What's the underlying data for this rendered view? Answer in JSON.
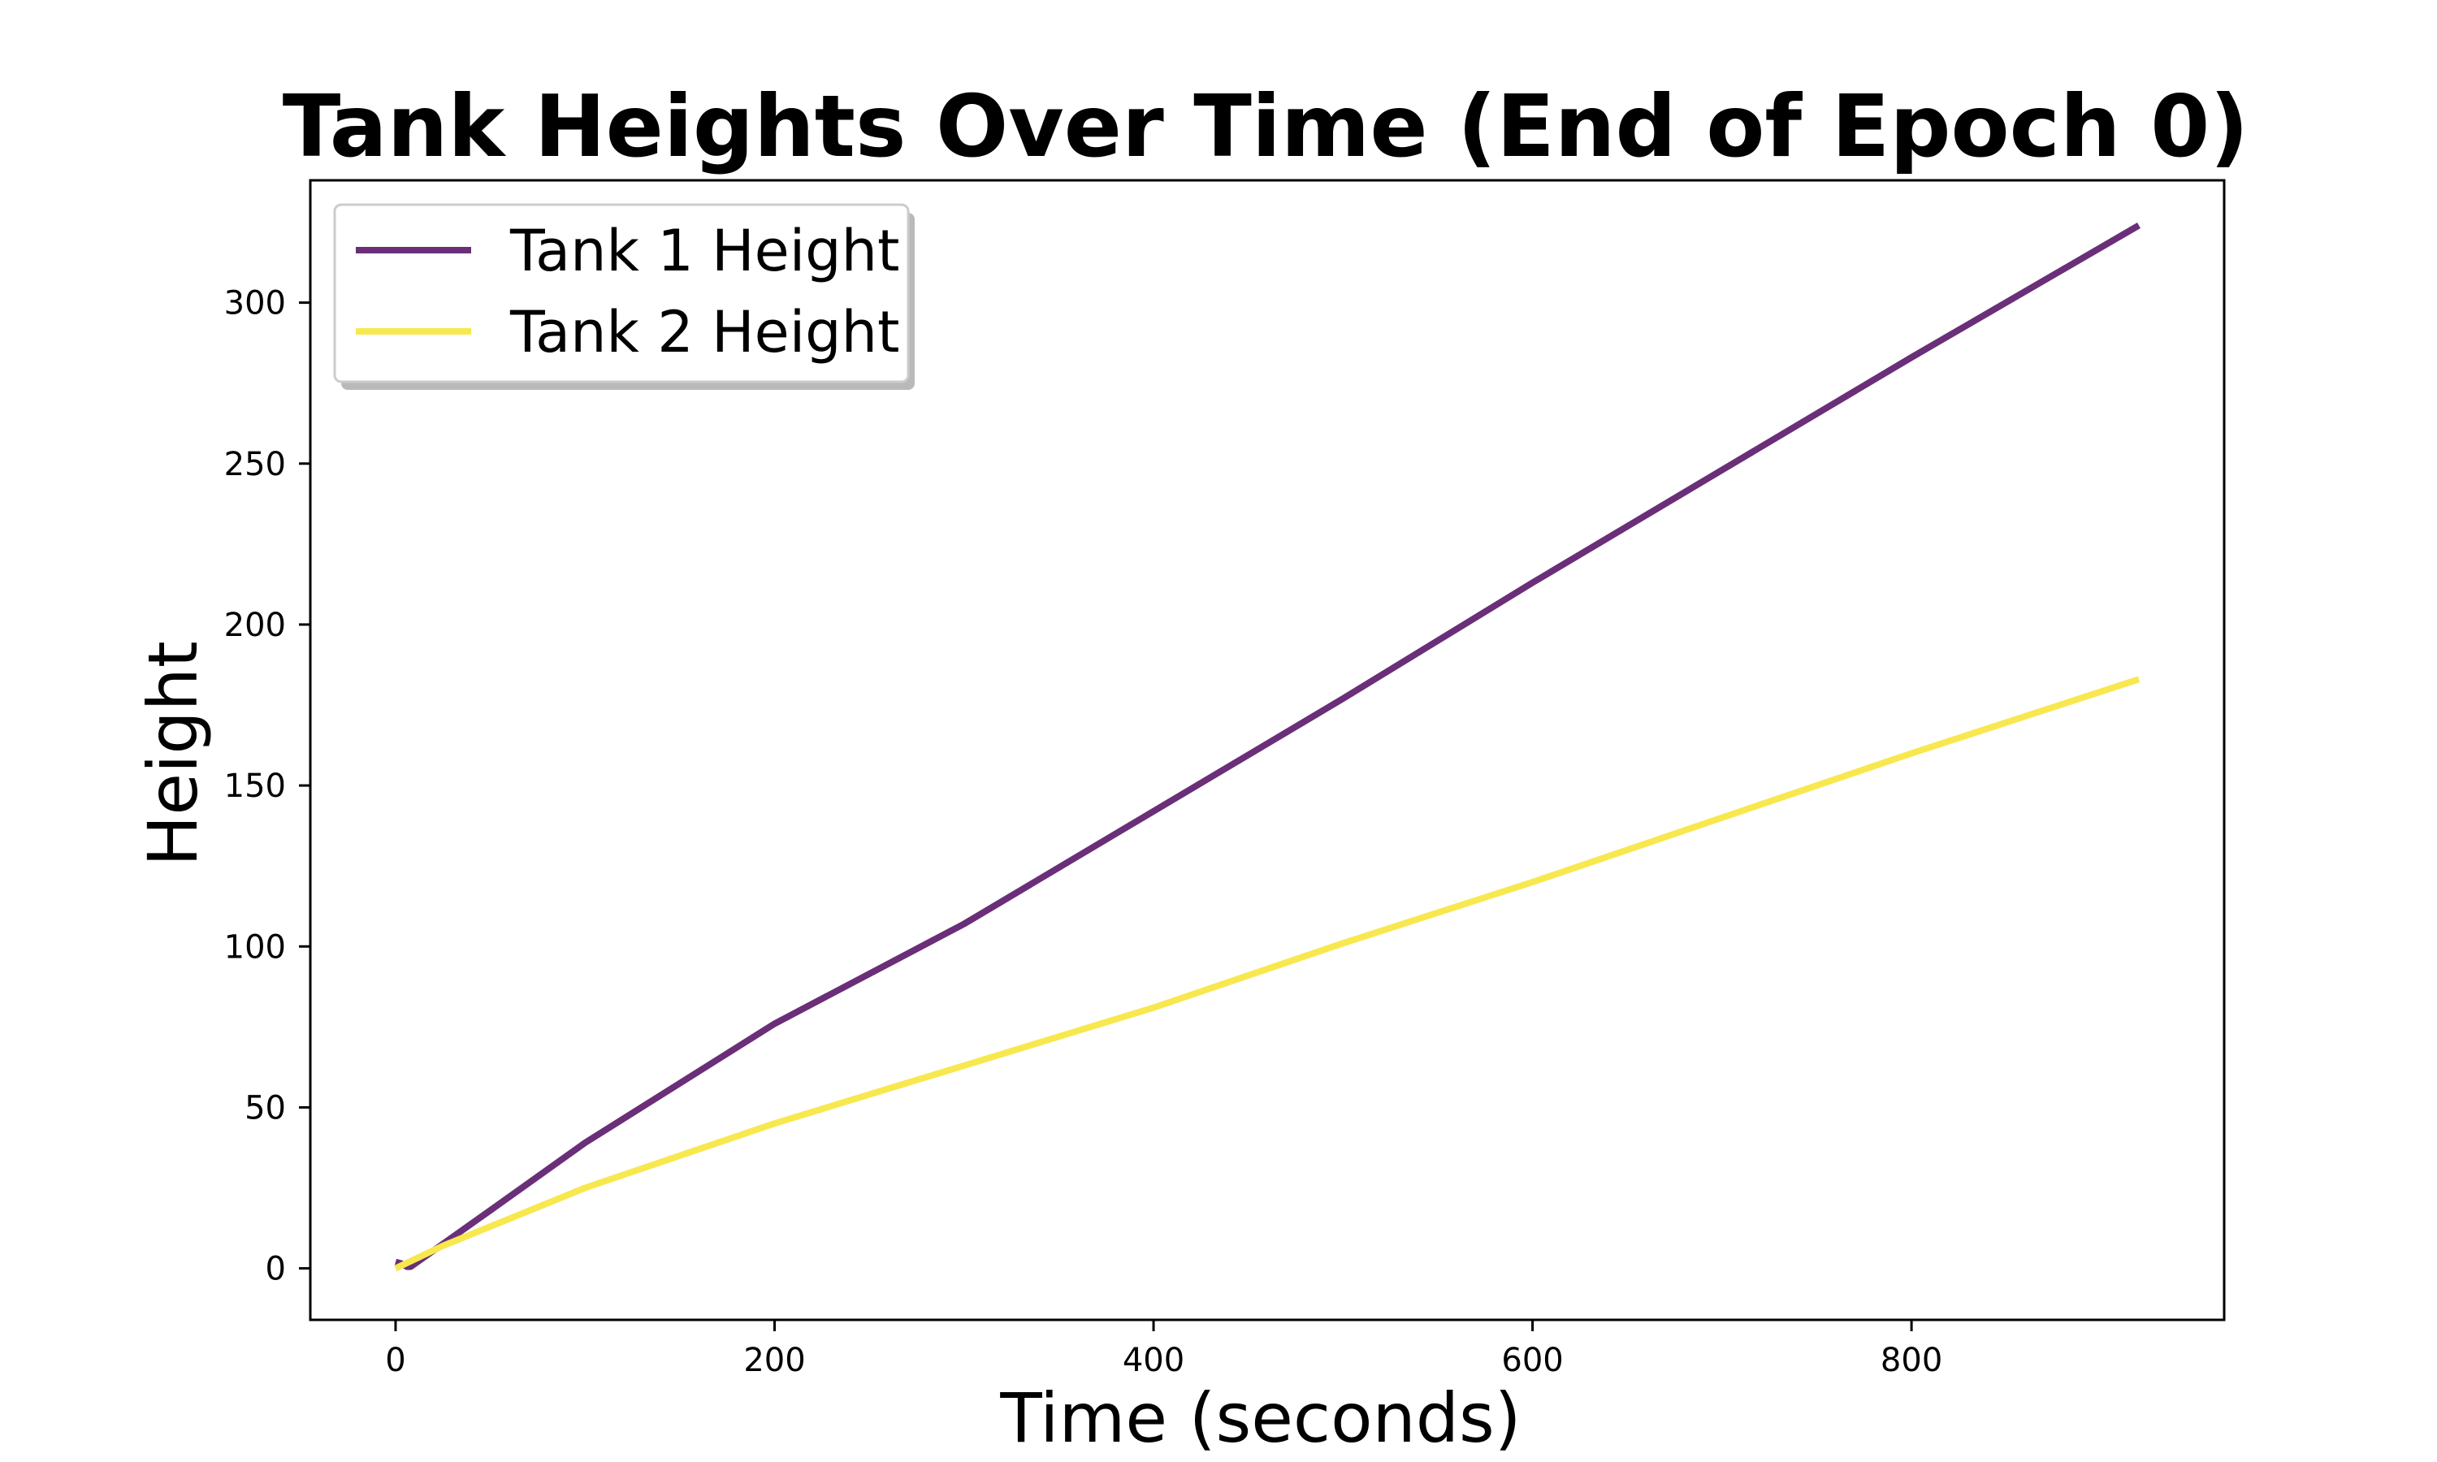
{
  "chart_data": {
    "type": "line",
    "title": "Tank Heights Over Time (End of Epoch 0)",
    "xlabel": "Time (seconds)",
    "ylabel": "Height",
    "xlim": [
      -45,
      965
    ],
    "ylim": [
      -16,
      338
    ],
    "xticks": [
      0,
      200,
      400,
      600,
      800
    ],
    "yticks": [
      0,
      50,
      100,
      150,
      200,
      250,
      300
    ],
    "grid": false,
    "legend_position": "top-left",
    "series": [
      {
        "name": "Tank 1 Height",
        "color": "#6a2f78",
        "x": [
          0,
          3,
          6,
          8,
          50,
          100,
          200,
          300,
          400,
          500,
          600,
          700,
          800,
          920
        ],
        "y": [
          2,
          1.5,
          0.5,
          0.5,
          18,
          39,
          76,
          107,
          142,
          177,
          213,
          248,
          283,
          324
        ]
      },
      {
        "name": "Tank 2 Height",
        "color": "#f7e84f",
        "x": [
          0,
          25,
          50,
          100,
          200,
          300,
          400,
          500,
          600,
          700,
          800,
          920
        ],
        "y": [
          0,
          7,
          13,
          25,
          45,
          63,
          81,
          101,
          120,
          140,
          160,
          183
        ]
      }
    ]
  }
}
